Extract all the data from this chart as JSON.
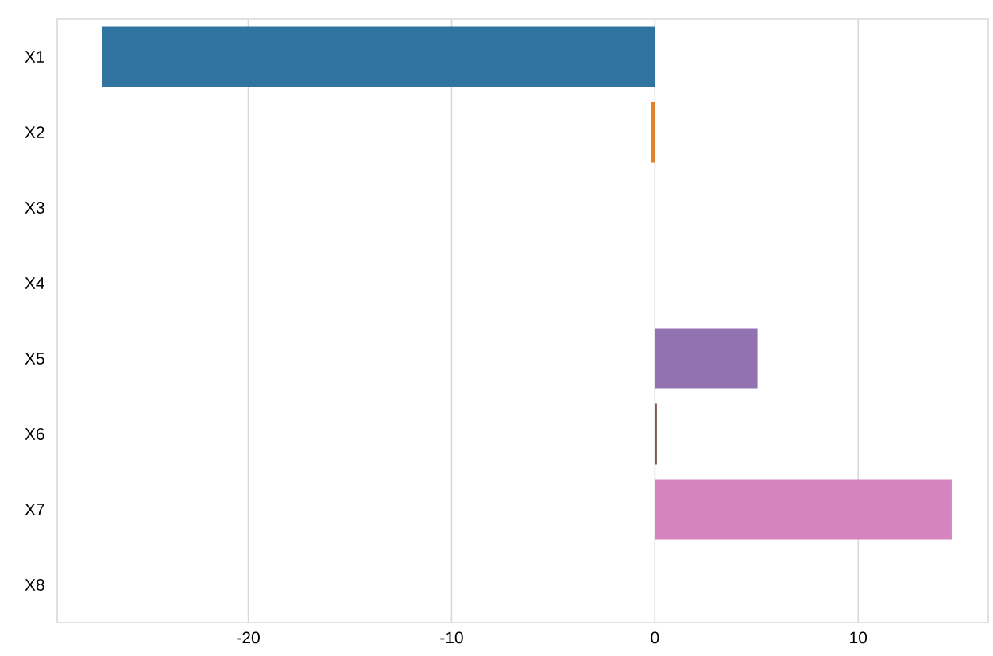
{
  "chart_data": {
    "type": "bar",
    "orientation": "horizontal",
    "categories": [
      "X1",
      "X2",
      "X3",
      "X4",
      "X5",
      "X6",
      "X7",
      "X8"
    ],
    "values": [
      -27.2,
      -0.2,
      0,
      0,
      5.05,
      0.1,
      14.6,
      0
    ],
    "colors": [
      "#3274a1",
      "#e1812c",
      "#3a923a",
      "#c03d3e",
      "#9372b2",
      "#845b53",
      "#d684bd",
      "#7f7f7f"
    ],
    "xlim": [
      -29.4,
      16.4
    ],
    "xticks": [
      -20,
      -10,
      0,
      10
    ],
    "grid": "x"
  }
}
